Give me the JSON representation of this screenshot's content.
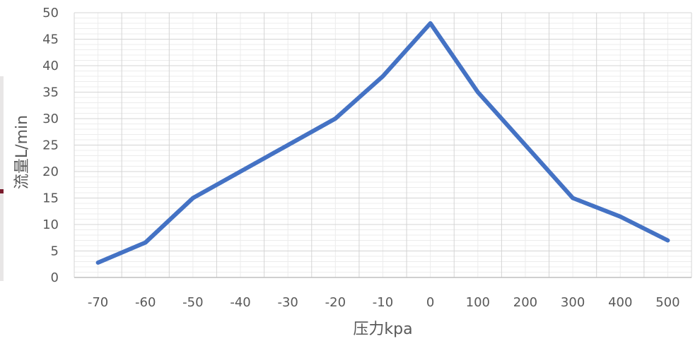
{
  "chart_data": {
    "type": "line",
    "title": "",
    "xlabel": "压力kpa",
    "ylabel": "流量L/min",
    "categories": [
      "-70",
      "-60",
      "-50",
      "-40",
      "-30",
      "-20",
      "-10",
      "0",
      "100",
      "200",
      "300",
      "400",
      "500"
    ],
    "series": [
      {
        "values": [
          2.8,
          6.6,
          15,
          20,
          25,
          30,
          38,
          48,
          35,
          25,
          15,
          11.5,
          7
        ],
        "color": "#4472c4"
      }
    ],
    "ylim": [
      0,
      50
    ],
    "ytick_step": 5,
    "grid": true,
    "legend": "none"
  }
}
